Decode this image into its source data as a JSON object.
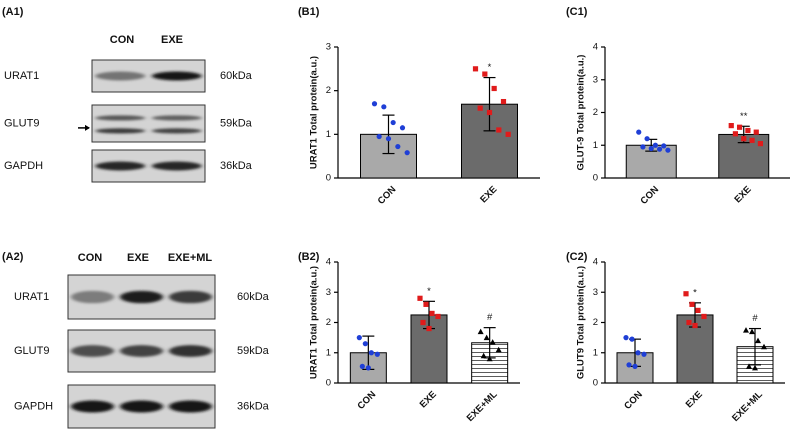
{
  "blots": [
    {
      "label": "(A1)",
      "columns": [
        "CON",
        "EXE"
      ],
      "rows": [
        {
          "name": "URAT1",
          "size": "60kDa"
        },
        {
          "name": "GLUT9",
          "size": "59kDa"
        },
        {
          "name": "GAPDH",
          "size": "36kDa"
        }
      ]
    },
    {
      "label": "(A2)",
      "columns": [
        "CON",
        "EXE",
        "EXE+ML"
      ],
      "rows": [
        {
          "name": "URAT1",
          "size": "60kDa"
        },
        {
          "name": "GLUT9",
          "size": "59kDa"
        },
        {
          "name": "GAPDH",
          "size": "36kDa"
        }
      ]
    }
  ],
  "chart_data": [
    {
      "type": "bar",
      "panel_label": "(B1)",
      "ylabel": "URAT1 Total protein(a.u.)",
      "categories": [
        "CON",
        "EXE"
      ],
      "values": [
        1.0,
        1.69
      ],
      "errors": [
        0.44,
        0.61
      ],
      "points": [
        [
          1.7,
          1.63,
          1.27,
          1.15,
          0.95,
          0.9,
          0.72,
          0.58
        ],
        [
          2.5,
          2.38,
          2.05,
          1.75,
          1.6,
          1.5,
          1.1,
          1.0
        ]
      ],
      "annotations": [
        null,
        "*"
      ],
      "bar_colors": [
        "#a9a9a9",
        "#6b6b6b"
      ],
      "point_colors": [
        "#1f3fd6",
        "#e01b1b"
      ],
      "point_shapes": [
        "circle",
        "square"
      ],
      "hatch": [
        false,
        false
      ],
      "ylim": [
        0,
        3
      ],
      "yticks": [
        0,
        1,
        2,
        3
      ]
    },
    {
      "type": "bar",
      "panel_label": "(C1)",
      "ylabel": "GLUT-9 Total protein(a.u.)",
      "categories": [
        "CON",
        "EXE"
      ],
      "values": [
        1.0,
        1.33
      ],
      "errors": [
        0.18,
        0.25
      ],
      "points": [
        [
          1.4,
          1.2,
          1.0,
          0.98,
          0.95,
          0.9,
          0.88,
          0.85
        ],
        [
          1.6,
          1.55,
          1.45,
          1.4,
          1.35,
          1.2,
          1.15,
          1.05
        ]
      ],
      "annotations": [
        null,
        "**"
      ],
      "bar_colors": [
        "#a9a9a9",
        "#6b6b6b"
      ],
      "point_colors": [
        "#1f3fd6",
        "#e01b1b"
      ],
      "point_shapes": [
        "circle",
        "square"
      ],
      "hatch": [
        false,
        false
      ],
      "ylim": [
        0,
        4
      ],
      "yticks": [
        0,
        1,
        2,
        3,
        4
      ]
    },
    {
      "type": "bar",
      "panel_label": "(B2)",
      "ylabel": "URAT1 Total protein(a.u.)",
      "categories": [
        "CON",
        "EXE",
        "EXE+ML"
      ],
      "values": [
        1.0,
        2.25,
        1.33
      ],
      "errors": [
        0.55,
        0.45,
        0.5
      ],
      "points": [
        [
          1.5,
          1.3,
          1.0,
          0.95,
          0.55,
          0.5
        ],
        [
          2.8,
          2.6,
          2.3,
          2.2,
          2.0,
          1.8
        ],
        [
          1.7,
          1.5,
          1.35,
          1.1,
          0.9,
          0.8
        ]
      ],
      "annotations": [
        null,
        "*",
        "#"
      ],
      "bar_colors": [
        "#a9a9a9",
        "#6b6b6b",
        "#ffffff"
      ],
      "point_colors": [
        "#1f3fd6",
        "#e01b1b",
        "#000000"
      ],
      "point_shapes": [
        "circle",
        "square",
        "triangle"
      ],
      "hatch": [
        false,
        false,
        true
      ],
      "ylim": [
        0,
        4
      ],
      "yticks": [
        0,
        1,
        2,
        3,
        4
      ]
    },
    {
      "type": "bar",
      "panel_label": "(C2)",
      "ylabel": "GLUT9 Total protein(a.u.)",
      "categories": [
        "CON",
        "EXE",
        "EXE+ML"
      ],
      "values": [
        1.0,
        2.25,
        1.2
      ],
      "errors": [
        0.45,
        0.4,
        0.6
      ],
      "points": [
        [
          1.5,
          1.45,
          1.0,
          0.95,
          0.6,
          0.55
        ],
        [
          2.95,
          2.6,
          2.4,
          2.2,
          2.0,
          1.9
        ],
        [
          1.75,
          1.7,
          1.4,
          1.2,
          0.55,
          0.5
        ]
      ],
      "annotations": [
        null,
        "*",
        "#"
      ],
      "bar_colors": [
        "#a9a9a9",
        "#6b6b6b",
        "#ffffff"
      ],
      "point_colors": [
        "#1f3fd6",
        "#e01b1b",
        "#000000"
      ],
      "point_shapes": [
        "circle",
        "square",
        "triangle"
      ],
      "hatch": [
        false,
        false,
        true
      ],
      "ylim": [
        0,
        4
      ],
      "yticks": [
        0,
        1,
        2,
        3,
        4
      ]
    }
  ]
}
